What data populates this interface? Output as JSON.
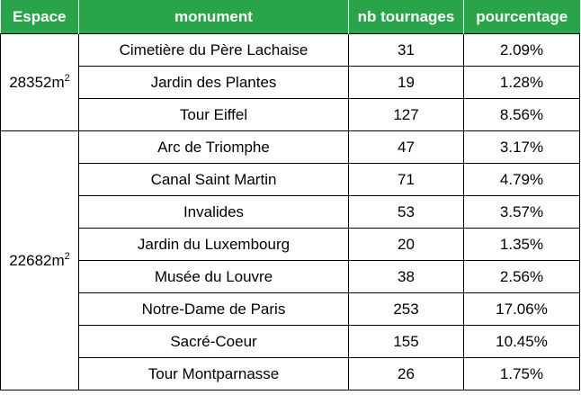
{
  "headers": [
    "Espace",
    "monument",
    "nb tournages",
    "pourcentage"
  ],
  "groups": [
    {
      "space_value": "28352m",
      "space_exp": "2",
      "rows": [
        {
          "monument": "Cimetière du Père Lachaise",
          "count": "31",
          "percent": "2.09%"
        },
        {
          "monument": "Jardin des Plantes",
          "count": "19",
          "percent": "1.28%"
        },
        {
          "monument": "Tour Eiffel",
          "count": "127",
          "percent": "8.56%"
        }
      ]
    },
    {
      "space_value": "22682m",
      "space_exp": "2",
      "rows": [
        {
          "monument": "Arc de Triomphe",
          "count": "47",
          "percent": "3.17%"
        },
        {
          "monument": "Canal Saint Martin",
          "count": "71",
          "percent": "4.79%"
        },
        {
          "monument": "Invalides",
          "count": "53",
          "percent": "3.57%"
        },
        {
          "monument": "Jardin du Luxembourg",
          "count": "20",
          "percent": "1.35%"
        },
        {
          "monument": "Musée du Louvre",
          "count": "38",
          "percent": "2.56%"
        },
        {
          "monument": "Notre-Dame de Paris",
          "count": "253",
          "percent": "17.06%"
        },
        {
          "monument": "Sacré-Coeur",
          "count": "155",
          "percent": "10.45%"
        },
        {
          "monument": "Tour Montparnasse",
          "count": "26",
          "percent": "1.75%"
        }
      ]
    }
  ],
  "colors": {
    "header_bg": "#2aa44a",
    "header_text": "#ffffff",
    "border": "#000000"
  }
}
